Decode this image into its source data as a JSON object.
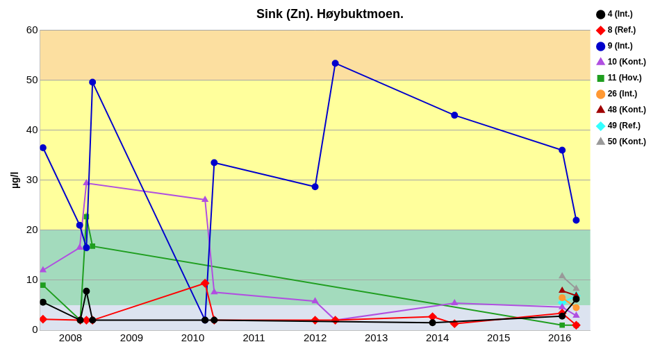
{
  "chart_data": {
    "type": "line",
    "title": "Sink (Zn). Høybuktmoen.",
    "y_label": "µg/l",
    "xlim": [
      2008,
      2017
    ],
    "xticks": [
      {
        "value": 2008.5,
        "label": "2008"
      },
      {
        "value": 2009.5,
        "label": "2009"
      },
      {
        "value": 2010.5,
        "label": "2010"
      },
      {
        "value": 2011.5,
        "label": "2011"
      },
      {
        "value": 2012.5,
        "label": "2012"
      },
      {
        "value": 2013.5,
        "label": "2013"
      },
      {
        "value": 2014.5,
        "label": "2014"
      },
      {
        "value": 2015.5,
        "label": "2015"
      },
      {
        "value": 2016.5,
        "label": "2016"
      }
    ],
    "ylim": [
      0,
      60
    ],
    "yticks": [
      0,
      10,
      20,
      30,
      40,
      50,
      60
    ],
    "grid": true,
    "legend": "right",
    "bands": [
      {
        "from": 0,
        "to": 5,
        "color": "#dce3f0"
      },
      {
        "from": 5,
        "to": 20,
        "color": "#a3dbbd"
      },
      {
        "from": 20,
        "to": 50,
        "color": "#ffff9c"
      },
      {
        "from": 50,
        "to": 60,
        "color": "#fcdfa0"
      }
    ],
    "series": [
      {
        "name": "4 (Int.)",
        "color": "#000000",
        "marker": "circle",
        "x": [
          2008.05,
          2008.66,
          2008.76,
          2008.86,
          2010.7,
          2010.85,
          2014.42,
          2016.54,
          2016.77
        ],
        "values": [
          5.6,
          2,
          7.8,
          2,
          2,
          2,
          1.5,
          2.8,
          6.2
        ]
      },
      {
        "name": "8 (Ref.)",
        "color": "#ff0000",
        "marker": "diamond",
        "x": [
          2008.05,
          2008.66,
          2008.76,
          2008.86,
          2010.7,
          2010.85,
          2012.5,
          2012.83,
          2014.42,
          2014.78,
          2016.54,
          2016.77
        ],
        "values": [
          2.2,
          2,
          2,
          2,
          9.4,
          2,
          2,
          2,
          2.7,
          1.3,
          3.4,
          1
        ]
      },
      {
        "name": "9 (Int.)",
        "color": "#0000cc",
        "marker": "circle",
        "x": [
          2008.05,
          2008.65,
          2008.76,
          2008.86,
          2010.7,
          2010.85,
          2012.5,
          2012.83,
          2014.78,
          2016.54,
          2016.77
        ],
        "values": [
          36.5,
          21,
          16.5,
          49.6,
          2,
          33.5,
          28.7,
          53.4,
          43,
          36,
          22
        ]
      },
      {
        "name": "10 (Kont.)",
        "color": "#b04fe0",
        "marker": "triangle",
        "x": [
          2008.05,
          2008.65,
          2008.76,
          2010.7,
          2010.85,
          2012.5,
          2012.83,
          2014.78,
          2016.54,
          2016.77
        ],
        "values": [
          12,
          16.5,
          29.4,
          26.1,
          7.6,
          5.8,
          2,
          5.4,
          4.6,
          2.9
        ]
      },
      {
        "name": "11 (Hov.)",
        "color": "#1f9e1f",
        "marker": "square",
        "x": [
          2008.05,
          2008.66,
          2008.76,
          2008.86,
          2016.54,
          2016.77
        ],
        "values": [
          9,
          2,
          22.7,
          16.8,
          1,
          1
        ]
      },
      {
        "name": "26 (Int.)",
        "color": "#ff9933",
        "marker": "circle",
        "x": [
          2016.54,
          2016.77
        ],
        "values": [
          6.5,
          4.5
        ]
      },
      {
        "name": "48 (Kont.)",
        "color": "#a00000",
        "marker": "triangle",
        "x": [
          2016.54,
          2016.77
        ],
        "values": [
          7.9,
          6.9
        ]
      },
      {
        "name": "49 (Ref.)",
        "color": "#33ffff",
        "marker": "diamond",
        "x": [
          2016.54,
          2016.77
        ],
        "values": [
          5.5,
          6.9
        ]
      },
      {
        "name": "50 (Kont.)",
        "color": "#999999",
        "marker": "triangle",
        "x": [
          2016.54,
          2016.77
        ],
        "values": [
          10.8,
          8.3
        ]
      }
    ]
  }
}
